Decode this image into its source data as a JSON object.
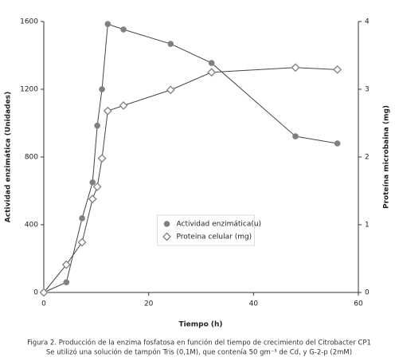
{
  "chart_data": {
    "type": "line",
    "caption": [
      "Figura 2. Producción de la enzima fosfatosa en función del tiempo de crecimiento del Citrobacter CP1",
      "Se utilizó una solución de tampón Tris (0,1M), que contenía 50 gm⁻³ de Cd, y G-2-p (2mM)"
    ],
    "x_label": "Tiempo (h)",
    "y_label": "Actividad enzimática (Unidades)",
    "y2_label": "Proteína microbaina (mg)",
    "x": [
      0,
      4.3,
      7.3,
      9.3,
      10.2,
      11.1,
      12.2,
      15.2,
      24.2,
      32,
      48,
      56
    ],
    "series": [
      {
        "name": "Actividad enzimática(u)",
        "color": "#808080",
        "marker": "circle",
        "values": [
          0,
          60,
          438,
          650,
          985,
          1200,
          1585,
          1553,
          1468,
          1355,
          922,
          880
        ]
      },
      {
        "name": "Proteina celular (mg)",
        "color": "#808080",
        "marker": "diamond",
        "axis": "y2",
        "values": [
          0,
          0.41,
          0.74,
          1.38,
          1.56,
          1.98,
          2.68,
          2.76,
          2.99,
          3.25,
          3.32,
          3.29
        ]
      }
    ],
    "xlim": [
      0,
      60
    ],
    "xticks": [
      0,
      20,
      40,
      60
    ],
    "ylim": [
      0,
      1600
    ],
    "yticks": [
      0,
      400,
      800,
      1200,
      1600
    ],
    "y2lim": [
      0,
      4
    ],
    "y2ticks": [
      0,
      1,
      2,
      3,
      4
    ],
    "legend": "center",
    "grid": false
  }
}
